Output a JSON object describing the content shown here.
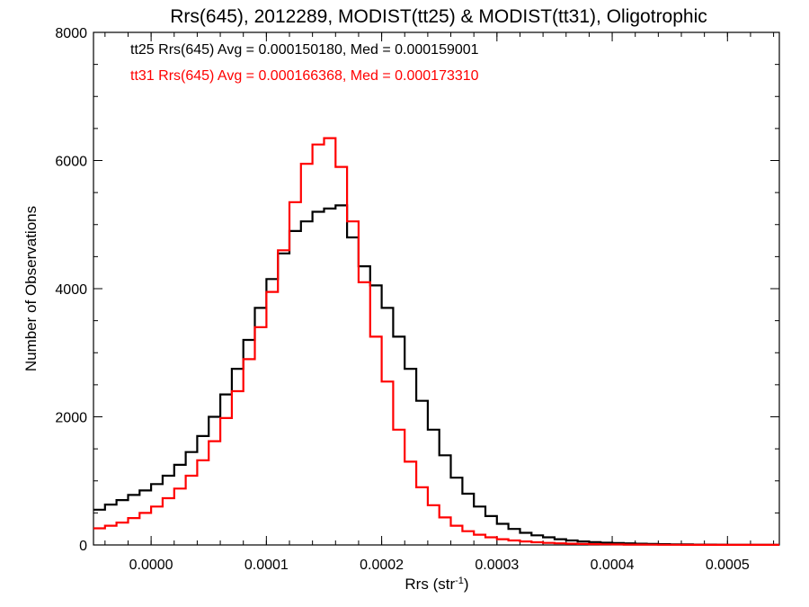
{
  "chart_data": {
    "type": "line",
    "title": "Rrs(645), 2012289, MODIST(tt25) & MODIST(tt31), Oligotrophic",
    "xlabel": "Rrs (str",
    "xlabel_sup": "-1",
    "xlabel_close": ")",
    "ylabel": "Number of Observations",
    "xlim": [
      -5e-05,
      0.000545
    ],
    "ylim": [
      0,
      8000
    ],
    "x_ticks": [
      {
        "value": 0.0,
        "label": "0.0000"
      },
      {
        "value": 0.0001,
        "label": "0.0001"
      },
      {
        "value": 0.0002,
        "label": "0.0002"
      },
      {
        "value": 0.0003,
        "label": "0.0003"
      },
      {
        "value": 0.0004,
        "label": "0.0004"
      },
      {
        "value": 0.0005,
        "label": "0.0005"
      }
    ],
    "y_ticks": [
      {
        "value": 0,
        "label": "0"
      },
      {
        "value": 2000,
        "label": "2000"
      },
      {
        "value": 4000,
        "label": "4000"
      },
      {
        "value": 6000,
        "label": "6000"
      },
      {
        "value": 8000,
        "label": "8000"
      }
    ],
    "legend": [
      {
        "text": "tt25 Rrs(645) Avg = 0.000150180, Med = 0.000159001",
        "color": "#000000"
      },
      {
        "text": "tt31 Rrs(645) Avg = 0.000166368, Med = 0.000173310",
        "color": "#ff0000"
      }
    ],
    "series": [
      {
        "color": "#000000",
        "x": [
          -5e-05,
          -4e-05,
          -3e-05,
          -2e-05,
          -1e-05,
          0.0,
          1e-05,
          2e-05,
          3e-05,
          4e-05,
          5e-05,
          6e-05,
          7e-05,
          8e-05,
          9e-05,
          0.0001,
          0.00011,
          0.00012,
          0.00013,
          0.00014,
          0.00015,
          0.00016,
          0.00017,
          0.00018,
          0.00019,
          0.0002,
          0.00021,
          0.00022,
          0.00023,
          0.00024,
          0.00025,
          0.00026,
          0.00027,
          0.00028,
          0.00029,
          0.0003,
          0.00031,
          0.00032,
          0.00033,
          0.00034,
          0.00035,
          0.00036,
          0.00037,
          0.00038,
          0.00039,
          0.0004,
          0.00041,
          0.00042,
          0.00043,
          0.00044,
          0.00045,
          0.00046,
          0.00047,
          0.00048,
          0.00049,
          0.0005,
          0.00051,
          0.00052,
          0.00053,
          0.00054,
          0.000545
        ],
        "y": [
          550,
          630,
          700,
          780,
          850,
          950,
          1080,
          1250,
          1450,
          1700,
          2000,
          2350,
          2750,
          3200,
          3700,
          4150,
          4550,
          4900,
          5050,
          5200,
          5250,
          5300,
          4800,
          4350,
          4050,
          3700,
          3250,
          2750,
          2250,
          1800,
          1400,
          1050,
          800,
          600,
          450,
          330,
          250,
          190,
          150,
          120,
          90,
          70,
          55,
          45,
          35,
          30,
          25,
          20,
          15,
          12,
          10,
          8,
          6,
          5,
          4,
          3,
          2,
          2,
          1,
          1,
          1
        ]
      },
      {
        "color": "#ff0000",
        "x": [
          -5e-05,
          -4e-05,
          -3e-05,
          -2e-05,
          -1e-05,
          0.0,
          1e-05,
          2e-05,
          3e-05,
          4e-05,
          5e-05,
          6e-05,
          7e-05,
          8e-05,
          9e-05,
          0.0001,
          0.00011,
          0.00012,
          0.00013,
          0.00014,
          0.00015,
          0.00016,
          0.00017,
          0.00018,
          0.00019,
          0.0002,
          0.00021,
          0.00022,
          0.00023,
          0.00024,
          0.00025,
          0.00026,
          0.00027,
          0.00028,
          0.00029,
          0.0003,
          0.00031,
          0.00032,
          0.00033,
          0.00034,
          0.00035,
          0.00036,
          0.00037,
          0.00038,
          0.00039,
          0.0004,
          0.00041,
          0.00042,
          0.00043,
          0.00044,
          0.00045,
          0.00046,
          0.00047,
          0.00048,
          0.00049,
          0.0005,
          0.00051,
          0.00052,
          0.00053,
          0.00054,
          0.000545
        ],
        "y": [
          260,
          300,
          350,
          420,
          500,
          600,
          730,
          880,
          1080,
          1320,
          1620,
          1980,
          2400,
          2900,
          3400,
          3950,
          4600,
          5350,
          5950,
          6250,
          6350,
          5900,
          5050,
          4100,
          3250,
          2550,
          1800,
          1300,
          900,
          620,
          430,
          300,
          215,
          160,
          120,
          90,
          70,
          55,
          42,
          32,
          25,
          20,
          16,
          13,
          10,
          8,
          6,
          5,
          4,
          3,
          3,
          2,
          2,
          1,
          1,
          1,
          1,
          1,
          1,
          1,
          1
        ]
      }
    ]
  }
}
